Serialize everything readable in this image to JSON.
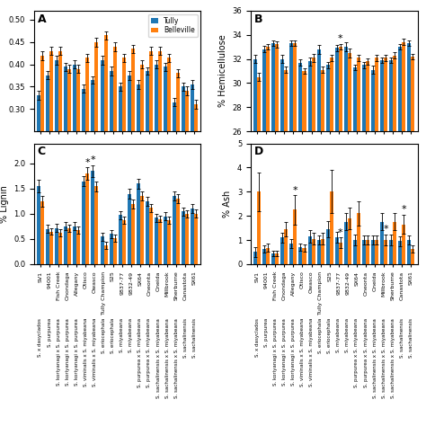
{
  "chart_data": [
    {
      "type": "bar",
      "panel_label": "A",
      "categories": [
        "SV1",
        "94001",
        "Fish Creek",
        "Onondaga",
        "Allegany",
        "Otisco",
        "Owasco",
        "Tully Champion",
        "S25",
        "9837-77",
        "9832-49",
        "SX64",
        "Oneonta",
        "Oneida",
        "Millbrook",
        "Sherburne",
        "Canastota",
        "SX61"
      ],
      "tick_labels": "y",
      "series": [
        {
          "name": "Tully",
          "values": [
            0.33,
            0.375,
            0.41,
            0.395,
            0.4,
            0.345,
            0.365,
            0.41,
            0.385,
            0.35,
            0.375,
            0.355,
            0.385,
            0.4,
            0.395,
            0.315,
            0.35,
            0.355
          ],
          "errors": [
            0.01,
            0.009,
            0.01,
            0.009,
            0.009,
            0.009,
            0.008,
            0.01,
            0.01,
            0.009,
            0.01,
            0.01,
            0.009,
            0.009,
            0.009,
            0.009,
            0.009,
            0.01
          ]
        },
        {
          "name": "Belleville",
          "values": [
            0.42,
            0.43,
            0.43,
            0.39,
            0.39,
            0.415,
            0.45,
            0.465,
            0.44,
            0.415,
            0.435,
            0.4,
            0.43,
            0.43,
            0.415,
            0.38,
            0.34,
            0.31
          ],
          "errors": [
            0.01,
            0.009,
            0.009,
            0.009,
            0.009,
            0.009,
            0.01,
            0.009,
            0.01,
            0.009,
            0.009,
            0.009,
            0.009,
            0.009,
            0.009,
            0.009,
            0.01,
            0.01
          ]
        }
      ],
      "ylim": [
        0.25,
        0.52
      ],
      "yticks": [
        {
          "value": 0.3,
          "label": "0.30"
        },
        {
          "value": 0.35,
          "label": "0.35"
        },
        {
          "value": 0.4,
          "label": "0.40"
        },
        {
          "value": 0.45,
          "label": "0.45"
        },
        {
          "value": 0.5,
          "label": "0.50"
        }
      ],
      "legend": "upper right"
    },
    {
      "type": "bar",
      "panel_label": "B",
      "categories": [
        "SV1",
        "94001",
        "Fish Creek",
        "Onondaga",
        "Allegany",
        "Otisco",
        "Owasco",
        "Tully Champion",
        "S25",
        "9837-77",
        "9832-49",
        "SX64",
        "Oneonta",
        "Oneida",
        "Millbrook",
        "Sherburne",
        "Canastota",
        "SX61"
      ],
      "tick_labels": "y",
      "series": [
        {
          "name": "Tully",
          "values": [
            32.0,
            32.8,
            33.3,
            32.0,
            33.3,
            31.7,
            31.8,
            32.8,
            31.5,
            32.9,
            33.0,
            31.3,
            31.5,
            31.1,
            31.9,
            31.9,
            33.0,
            33.3
          ],
          "errors": [
            0.35,
            0.25,
            0.25,
            0.35,
            0.25,
            0.25,
            0.35,
            0.35,
            0.25,
            0.25,
            0.35,
            0.25,
            0.25,
            0.35,
            0.25,
            0.25,
            0.25,
            0.25
          ]
        },
        {
          "name": "Belleville",
          "values": [
            30.5,
            33.0,
            33.2,
            31.1,
            33.3,
            31.0,
            32.1,
            31.1,
            32.1,
            33.0,
            32.5,
            32.1,
            31.8,
            32.1,
            32.1,
            32.3,
            33.4,
            32.2
          ],
          "errors": [
            0.35,
            0.25,
            0.25,
            0.25,
            0.25,
            0.25,
            0.35,
            0.25,
            0.25,
            0.25,
            0.35,
            0.25,
            0.25,
            0.25,
            0.25,
            0.25,
            0.25,
            0.25
          ]
        }
      ],
      "ylabel": "% Hemicellulose",
      "ylim": [
        26,
        36
      ],
      "yticks": [
        26,
        28,
        30,
        32,
        34,
        36
      ],
      "annotations": [
        {
          "text": "*",
          "category": "9837-77",
          "series": "Belleville"
        }
      ]
    },
    {
      "type": "bar",
      "panel_label": "C",
      "categories": [
        "SV1",
        "94001",
        "Fish Creek",
        "Onondaga",
        "Allegany",
        "Otisco",
        "Owasco",
        "Tully Champion",
        "S25",
        "9837-77",
        "9832-49",
        "SX64",
        "Oneonta",
        "Oneida",
        "Millbrook",
        "Sherburne",
        "Canastota",
        "SX61"
      ],
      "species": [
        "S. x dasyclados",
        "S. purpurea",
        "S. koriyanagi x S. purpurea",
        "S. koriyanagi x S. purpurea",
        "S. koriyanagi x S. purpurea",
        "S. viminalis x S. miyabeana",
        "S. viminalis x S. miyabeana",
        "S. eriocephala",
        "S. eriocephala",
        "S. miyabeana",
        "S. miyabeana",
        "S. purpurea x S. miyabeana",
        "S. purpurea x S. miyabeana",
        "S. sachalinensis x S. miyabeana",
        "S. sachalinensis x S. miyabeana",
        "S. sachalinensis x S. miyabeana",
        "S. sachalinensis",
        "S. sachalinensis"
      ],
      "series": [
        {
          "name": "Tully",
          "values": [
            1.55,
            0.7,
            0.72,
            0.75,
            0.75,
            1.65,
            1.85,
            0.55,
            0.6,
            0.98,
            1.4,
            1.6,
            1.25,
            0.92,
            0.95,
            1.35,
            1.05,
            1.1
          ],
          "errors": [
            0.12,
            0.08,
            0.08,
            0.08,
            0.08,
            0.1,
            0.12,
            0.08,
            0.08,
            0.08,
            0.1,
            0.1,
            0.09,
            0.08,
            0.08,
            0.09,
            0.08,
            0.09
          ]
        },
        {
          "name": "Belleville",
          "values": [
            1.25,
            0.65,
            0.62,
            0.72,
            0.68,
            1.8,
            1.55,
            0.38,
            0.52,
            0.88,
            1.2,
            1.35,
            1.12,
            0.9,
            0.88,
            1.3,
            1.0,
            1.0
          ],
          "errors": [
            0.1,
            0.07,
            0.07,
            0.07,
            0.07,
            0.12,
            0.1,
            0.07,
            0.07,
            0.07,
            0.09,
            0.09,
            0.08,
            0.07,
            0.07,
            0.09,
            0.07,
            0.08
          ]
        }
      ],
      "ylabel": "% Lignin",
      "ylim": [
        0,
        2.4
      ],
      "yticks": [
        {
          "value": 0.0,
          "label": "0.0"
        },
        {
          "value": 0.5,
          "label": "0.5"
        },
        {
          "value": 1.0,
          "label": "1.0"
        },
        {
          "value": 1.5,
          "label": "1.5"
        },
        {
          "value": 2.0,
          "label": "2.0"
        }
      ],
      "annotations": [
        {
          "text": "*",
          "category": "Owasco",
          "series": "Tully"
        },
        {
          "text": "*",
          "category": "Otisco",
          "series": "Belleville"
        }
      ]
    },
    {
      "type": "bar",
      "panel_label": "D",
      "categories": [
        "SV1",
        "94001",
        "Fish Creek",
        "Onondaga",
        "Allegany",
        "Otisco",
        "Owasco",
        "Tully Champion",
        "S25",
        "9837-77",
        "9832-49",
        "SX64",
        "Oneonta",
        "Oneida",
        "Millbrook",
        "Sherburne",
        "Canastota",
        "SX61"
      ],
      "species": [
        "S. x dasyclados",
        "S. purpurea",
        "S. koriyanagi x S. purpurea",
        "S. koriyanagi x S. purpurea",
        "S. koriyanagi x S. purpurea",
        "S. viminalis x S. miyabeana",
        "S. viminalis x S. miyabeana",
        "S. eriocephala",
        "S. eriocephala",
        "S. miyabeana",
        "S. miyabeana",
        "S. purpurea x S. miyabeana",
        "S. purpurea x S. miyabeana",
        "S. sachalinensis x S. miyabeana",
        "S. sachalinensis x S. miyabeana",
        "S. sachalinensis x S. miyabeana",
        "S. sachalinensis",
        "S. sachalinensis"
      ],
      "series": [
        {
          "name": "Tully",
          "values": [
            0.5,
            0.62,
            0.45,
            1.1,
            0.85,
            0.7,
            1.15,
            1.0,
            1.45,
            1.1,
            1.75,
            1.0,
            1.0,
            1.0,
            1.75,
            1.0,
            0.95,
            1.0
          ],
          "errors": [
            0.2,
            0.15,
            0.12,
            0.2,
            0.18,
            0.15,
            0.25,
            0.2,
            0.35,
            0.22,
            0.35,
            0.22,
            0.2,
            0.2,
            0.35,
            0.22,
            0.2,
            0.2
          ]
        },
        {
          "name": "Belleville",
          "values": [
            3.0,
            0.68,
            0.45,
            1.45,
            2.25,
            0.68,
            1.05,
            1.05,
            3.0,
            0.88,
            1.9,
            2.1,
            1.0,
            1.0,
            1.0,
            1.75,
            1.65,
            0.62
          ],
          "errors": [
            0.8,
            0.18,
            0.12,
            0.3,
            0.6,
            0.15,
            0.25,
            0.25,
            0.9,
            0.22,
            0.45,
            0.5,
            0.2,
            0.2,
            0.22,
            0.35,
            0.4,
            0.15
          ]
        }
      ],
      "ylabel": "% Ash",
      "ylim": [
        0,
        5
      ],
      "yticks": [
        0,
        1,
        2,
        3,
        4,
        5
      ],
      "annotations": [
        {
          "text": "*",
          "category": "Allegany",
          "series": "Belleville"
        },
        {
          "text": "*",
          "category": "9837-77",
          "series": "Belleville"
        },
        {
          "text": "*",
          "category": "Millbrook",
          "series": "Belleville"
        },
        {
          "text": "*",
          "category": "Canastota",
          "series": "Belleville"
        }
      ]
    }
  ]
}
